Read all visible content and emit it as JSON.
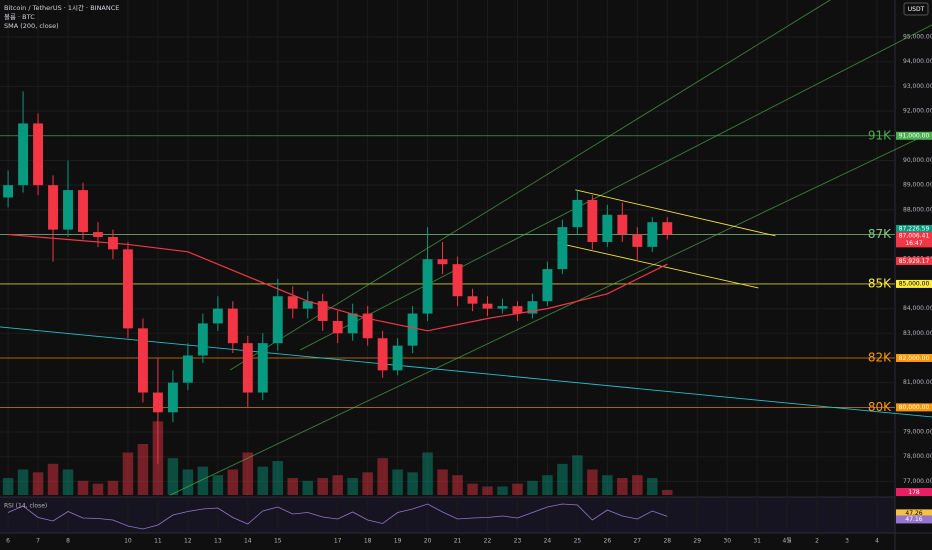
{
  "chart_data": {
    "type": "candlestick",
    "title": "Bitcoin / TetherUS · 1시간 · BINANCE",
    "volume_label": "볼륨 · BTC",
    "sma_label": "SMA (200, close)",
    "rsi_label": "RSI (14, close)",
    "currency": "USDT",
    "countdown": "16:47",
    "up_color": "#089981",
    "down_color": "#f23645",
    "grid": true,
    "xlim": [
      -0.27,
      29.6
    ],
    "ylim": [
      76450,
      96500
    ],
    "xticks": [
      {
        "value": 0,
        "label": "6"
      },
      {
        "value": 1,
        "label": "7"
      },
      {
        "value": 2,
        "label": "8"
      },
      {
        "value": 4,
        "label": "10"
      },
      {
        "value": 5,
        "label": "11"
      },
      {
        "value": 6,
        "label": "12"
      },
      {
        "value": 7,
        "label": "13"
      },
      {
        "value": 8,
        "label": "14"
      },
      {
        "value": 9,
        "label": "15"
      },
      {
        "value": 11,
        "label": "17"
      },
      {
        "value": 12,
        "label": "18"
      },
      {
        "value": 13,
        "label": "19"
      },
      {
        "value": 14,
        "label": "20"
      },
      {
        "value": 15,
        "label": "21"
      },
      {
        "value": 16,
        "label": "22"
      },
      {
        "value": 17,
        "label": "23"
      },
      {
        "value": 18,
        "label": "24"
      },
      {
        "value": 19,
        "label": "25"
      },
      {
        "value": 20,
        "label": "26"
      },
      {
        "value": 21,
        "label": "27"
      },
      {
        "value": 22,
        "label": "28"
      },
      {
        "value": 23,
        "label": "29"
      },
      {
        "value": 24,
        "label": "30"
      },
      {
        "value": 25,
        "label": "31"
      },
      {
        "value": 26,
        "label": "4월"
      },
      {
        "value": 27,
        "label": "2"
      },
      {
        "value": 28,
        "label": "3"
      },
      {
        "value": 29,
        "label": "4"
      }
    ],
    "yticks": [
      {
        "value": 77000,
        "label": "77,000.00"
      },
      {
        "value": 78000,
        "label": "78,000.00"
      },
      {
        "value": 79000,
        "label": "79,000.00"
      },
      {
        "value": 80000,
        "label": "80,000.00"
      },
      {
        "value": 81000,
        "label": "81,000.00"
      },
      {
        "value": 82000,
        "label": "82,000.00"
      },
      {
        "value": 83000,
        "label": "83,000.00"
      },
      {
        "value": 84000,
        "label": "84,000.00"
      },
      {
        "value": 85000,
        "label": "85,000.00"
      },
      {
        "value": 86000,
        "label": "86,000.00"
      },
      {
        "value": 87000,
        "label": "87,000.00"
      },
      {
        "value": 88000,
        "label": "88,000.00"
      },
      {
        "value": 89000,
        "label": "89,000.00"
      },
      {
        "value": 90000,
        "label": "90,000.00"
      },
      {
        "value": 91000,
        "label": "91,000.00"
      },
      {
        "value": 92000,
        "label": "92,000.00"
      },
      {
        "value": 93000,
        "label": "93,000.00"
      },
      {
        "value": 94000,
        "label": "94,000.00"
      },
      {
        "value": 95000,
        "label": "95,000.00"
      }
    ],
    "x": [
      0,
      0.5,
      1,
      1.5,
      2,
      2.5,
      3,
      3.5,
      4,
      4.5,
      5,
      5.5,
      6,
      6.5,
      7,
      7.5,
      8,
      8.5,
      9,
      9.5,
      10,
      10.5,
      11,
      11.5,
      12,
      12.5,
      13,
      13.5,
      14,
      14.5,
      15,
      15.5,
      16,
      16.5,
      17,
      17.5,
      18,
      18.5,
      19,
      19.5,
      20,
      20.5,
      21,
      21.5,
      22
    ],
    "open": [
      88500,
      89000,
      91500,
      89000,
      87200,
      88800,
      87100,
      86900,
      86400,
      83200,
      80600,
      79800,
      81000,
      82100,
      83400,
      84000,
      82600,
      80600,
      82600,
      84500,
      84000,
      84300,
      83500,
      83000,
      83800,
      82800,
      81500,
      82500,
      83800,
      86000,
      85800,
      84500,
      84200,
      84000,
      84100,
      83800,
      84300,
      85600,
      87300,
      88400,
      86700,
      87800,
      87000,
      86500,
      87500
    ],
    "high": [
      89600,
      92800,
      91900,
      89400,
      90000,
      89100,
      87500,
      87200,
      86700,
      83600,
      82000,
      81500,
      82600,
      83800,
      84500,
      84300,
      82900,
      83000,
      85200,
      84900,
      84700,
      84600,
      83900,
      84200,
      84100,
      83100,
      82800,
      84100,
      87300,
      86700,
      86100,
      84800,
      84500,
      84400,
      84300,
      84600,
      85900,
      87600,
      88800,
      88600,
      88200,
      88300,
      87300,
      87700,
      87700
    ],
    "low": [
      88100,
      88700,
      88600,
      85900,
      86900,
      86800,
      86500,
      86000,
      82800,
      80200,
      77700,
      79400,
      80700,
      81800,
      83100,
      82200,
      80000,
      80300,
      82300,
      83600,
      83600,
      83100,
      82600,
      82700,
      82500,
      81200,
      81300,
      82200,
      83500,
      85400,
      84100,
      83900,
      83700,
      83800,
      83500,
      83600,
      84100,
      85400,
      87000,
      86400,
      86500,
      86700,
      85900,
      86300,
      86800
    ],
    "close": [
      89000,
      91500,
      89000,
      87200,
      88800,
      87100,
      86900,
      86400,
      83200,
      80600,
      79800,
      81000,
      82100,
      83400,
      84000,
      82600,
      80600,
      82600,
      84500,
      84000,
      84300,
      83500,
      83000,
      83800,
      82800,
      81500,
      82500,
      83800,
      86000,
      85800,
      84500,
      84200,
      84000,
      84100,
      83800,
      84300,
      85600,
      87300,
      88400,
      86700,
      87800,
      87000,
      86500,
      87500,
      87000
    ],
    "volume": [
      600,
      900,
      800,
      1100,
      900,
      500,
      400,
      500,
      1500,
      1800,
      2600,
      1300,
      900,
      1000,
      700,
      900,
      1500,
      1000,
      1200,
      600,
      500,
      600,
      700,
      600,
      800,
      1300,
      900,
      800,
      1500,
      900,
      700,
      400,
      300,
      300,
      400,
      500,
      700,
      1100,
      1400,
      900,
      700,
      600,
      700,
      600,
      178
    ],
    "vlim": [
      0,
      3000
    ],
    "volume_tag": "178",
    "rsi": [
      55,
      68,
      45,
      38,
      57,
      44,
      43,
      40,
      28,
      22,
      30,
      50,
      57,
      62,
      64,
      45,
      32,
      58,
      66,
      52,
      55,
      46,
      42,
      56,
      40,
      33,
      55,
      62,
      72,
      56,
      42,
      44,
      45,
      48,
      44,
      55,
      66,
      72,
      70,
      40,
      60,
      48,
      42,
      58,
      47.26
    ],
    "rsi_lim": [
      20,
      80
    ],
    "rsi_tags": [
      {
        "value": 47.26,
        "label": "47.26",
        "color": "#f5c242"
      },
      {
        "value": 47.16,
        "label": "47.16",
        "color": "#9575cd"
      }
    ],
    "sma": {
      "color": "#f23645",
      "x": [
        0,
        2,
        4,
        6,
        8,
        10,
        12,
        14,
        16,
        18,
        20,
        22
      ],
      "values": [
        87000,
        86800,
        86600,
        86300,
        85300,
        84300,
        83600,
        83100,
        83600,
        84000,
        84600,
        85800
      ]
    },
    "levels": [
      {
        "name": "91K",
        "value": 91000,
        "tag": "91,000.00",
        "color": "#4caf50"
      },
      {
        "name": "87K",
        "value": 87000,
        "tag": "87,000.00",
        "color": "#81c784"
      },
      {
        "name": "85K",
        "value": 85000,
        "tag": "85,000.00",
        "color": "#ffeb3b"
      },
      {
        "name": "82K",
        "value": 82000,
        "tag": "82,000.00",
        "color": "#ff9800"
      },
      {
        "name": "80K",
        "value": 80000,
        "tag": "80,000.00",
        "color": "#ff9800"
      }
    ],
    "price_tags": [
      {
        "value": 87226.59,
        "label": "87,226.59",
        "color": "#089981"
      },
      {
        "value": 87006.41,
        "label": "87,006.41",
        "color": "#f23645"
      },
      {
        "value": 85929.17,
        "label": "85,929.17",
        "color": "#f23645"
      }
    ],
    "trendlines": [
      {
        "color": "#4caf50",
        "points": [
          [
            7.41,
            81514
          ],
          [
            27.45,
            96512
          ]
        ]
      },
      {
        "color": "#4caf50",
        "points": [
          [
            9.75,
            82325
          ],
          [
            30.85,
            95500
          ]
        ]
      },
      {
        "color": "#4caf50",
        "points": [
          [
            5.41,
            76447
          ],
          [
            30.85,
            91161
          ]
        ]
      },
      {
        "color": "#ffeb3b",
        "points": [
          [
            18.93,
            88810
          ],
          [
            25.61,
            86946
          ]
        ]
      },
      {
        "color": "#ffeb3b",
        "points": [
          [
            18.33,
            86662
          ],
          [
            25.04,
            84838
          ]
        ]
      },
      {
        "color": "#26c6da",
        "points": [
          [
            -0.27,
            83257
          ],
          [
            30.85,
            79609
          ]
        ]
      }
    ]
  }
}
